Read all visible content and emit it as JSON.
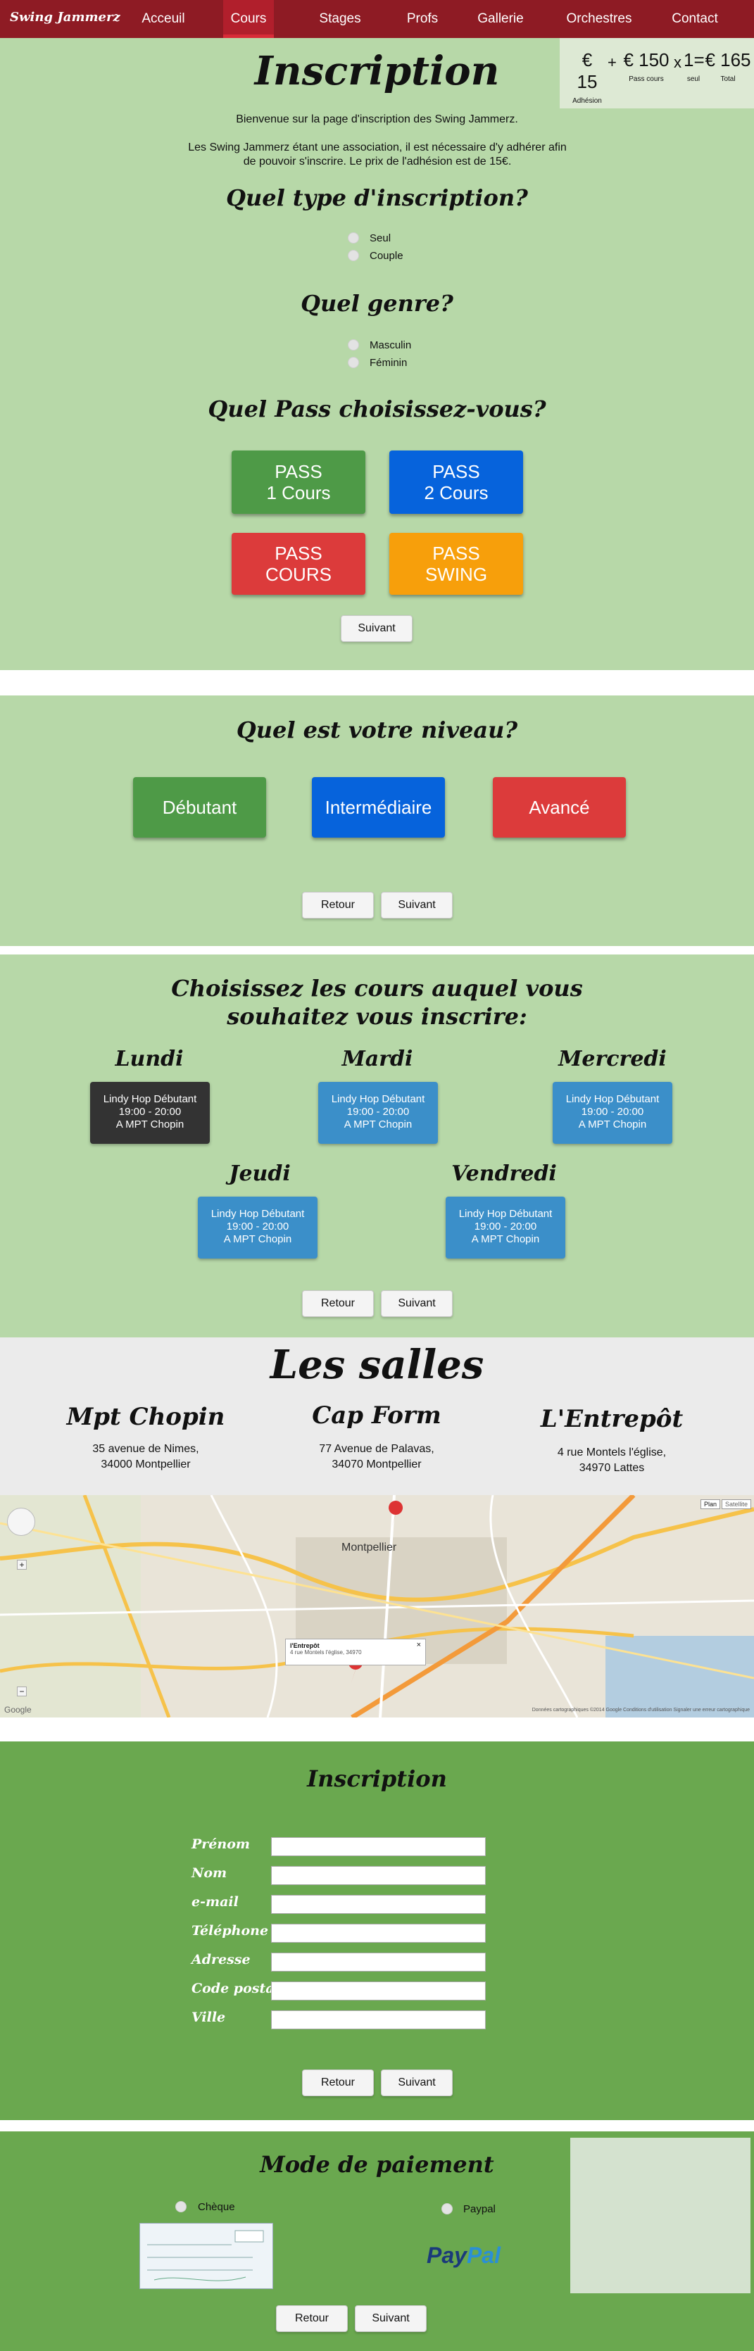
{
  "nav": {
    "brand": "Swing Jammerz",
    "items": [
      {
        "label": "Acceuil"
      },
      {
        "label": "Cours"
      },
      {
        "label": "Stages"
      },
      {
        "label": "Profs"
      },
      {
        "label": "Gallerie"
      },
      {
        "label": "Orchestres"
      },
      {
        "label": "Contact"
      }
    ]
  },
  "price": {
    "adhesion_value": "€ 15",
    "adhesion_label": "Adhésion",
    "plus": "+",
    "pass_value": "€ 150",
    "pass_label": "Pass cours",
    "times": "x",
    "mult_value": "1",
    "mult_label": "seul",
    "equals": "=",
    "total_value": "€ 165",
    "total_label": "Total"
  },
  "intro": {
    "title": "Inscription",
    "welcome": "Bienvenue sur la page d'inscription des Swing Jammerz.",
    "text": "Les Swing Jammerz étant une association, il est nécessaire d'y adhérer afin de pouvoir s'inscrire. Le prix de l'adhésion est de 15€."
  },
  "type_question": {
    "title": "Quel type d'inscription?",
    "options": [
      "Seul",
      "Couple"
    ]
  },
  "gender_question": {
    "title": "Quel genre?",
    "options": [
      "Masculin",
      "Féminin"
    ]
  },
  "pass_question": {
    "title": "Quel Pass choisissez-vous?",
    "options": [
      "PASS\n1 Cours",
      "PASS\n2 Cours",
      "PASS\nCOURS",
      "PASS\nSWING"
    ]
  },
  "buttons": {
    "next": "Suivant",
    "back": "Retour"
  },
  "level": {
    "title": "Quel est votre niveau?",
    "options": [
      "Débutant",
      "Intermédiaire",
      "Avancé"
    ]
  },
  "courses": {
    "title_line1": "Choisissez les cours auquel vous",
    "title_line2": "souhaitez vous inscrire:",
    "days": [
      {
        "day": "Lundi",
        "line1": "Lindy Hop Débutant",
        "line2": "19:00 - 20:00",
        "line3": "A MPT Chopin"
      },
      {
        "day": "Mardi",
        "line1": "Lindy Hop Débutant",
        "line2": "19:00 - 20:00",
        "line3": "A MPT Chopin"
      },
      {
        "day": "Mercredi",
        "line1": "Lindy Hop Débutant",
        "line2": "19:00 - 20:00",
        "line3": "A MPT Chopin"
      },
      {
        "day": "Jeudi",
        "line1": "Lindy Hop Débutant",
        "line2": "19:00 - 20:00",
        "line3": "A MPT Chopin"
      },
      {
        "day": "Vendredi",
        "line1": "Lindy Hop Débutant",
        "line2": "19:00 - 20:00",
        "line3": "A MPT Chopin"
      }
    ]
  },
  "salles": {
    "title": "Les salles",
    "venues": [
      {
        "name": "Mpt Chopin",
        "addr1": "35 avenue de Nimes,",
        "addr2": "34000 Montpellier"
      },
      {
        "name": "Cap Form",
        "addr1": "77 Avenue de Palavas,",
        "addr2": "34070 Montpellier"
      },
      {
        "name": "L'Entrepôt",
        "addr1": "4 rue Montels l'église,",
        "addr2": "34970 Lattes"
      }
    ]
  },
  "map": {
    "city_label": "Montpellier",
    "type_plan": "Plan",
    "type_sat": "Satellite",
    "popup_title": "l'Entrepôt",
    "popup_addr": "4 rue Montels l'église, 34970",
    "footer": "Données cartographiques ©2014 Google   Conditions d'utilisation   Signaler une erreur cartographique",
    "google": "Google"
  },
  "form": {
    "title": "Inscription",
    "fields": [
      "Prénom",
      "Nom",
      "e-mail",
      "Téléphone",
      "Adresse",
      "Code postal",
      "Ville"
    ]
  },
  "payment": {
    "title": "Mode de paiement",
    "options": [
      "Chèque",
      "Paypal"
    ],
    "paypal_pay": "Pay",
    "paypal_pal": "Pal"
  },
  "colors": {
    "nav": "#8e1b24",
    "section_green": "#b7d8a8",
    "section_dark": "#6aa84f"
  }
}
